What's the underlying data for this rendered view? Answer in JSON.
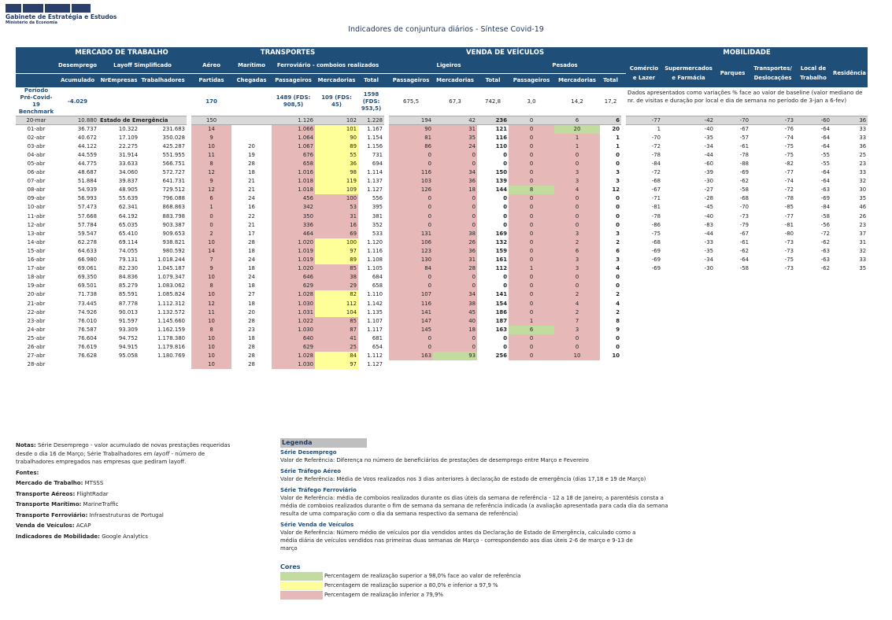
{
  "logo": {
    "name": "Gabinete de Estratégia e Estudos",
    "sub": "Ministério da Economia"
  },
  "title": "Indicadores de conjuntura diários - Síntese Covid-19",
  "headers": {
    "g_mercado": "MERCADO DE TRABALHO",
    "g_transportes": "TRANSPORTES",
    "g_venda": "VENDA DE VEÍCULOS",
    "g_mobilidade": "MOBILIDADE",
    "desemprego": "Desemprego",
    "layoff": "Layoff Simplificado",
    "aereo": "Aéreo",
    "maritimo": "Marítimo",
    "ferroviario": "Ferroviário - comboios realizados",
    "ligeiros": "Ligeiros",
    "pesados": "Pesados",
    "acumulado": "Acumulado",
    "nrempresas": "NrEmpresas",
    "trabalhadores": "Trabalhadores",
    "partidas": "Partidas",
    "chegadas": "Chegadas",
    "passageiros": "Passageiros",
    "mercadorias": "Mercadorias",
    "total": "Total",
    "comercio": "Comércio e Lazer",
    "supermercados": "Supermercados e Farmácia",
    "parques": "Parques",
    "transportes_desloc": "Transportes/ Deslocações",
    "local_trabalho": "Local de Trabalho",
    "residencia": "Residência"
  },
  "benchmark": {
    "label": "Período Pré-Covid-19 Benchmark",
    "desemprego": "-4.029",
    "aereo": "170",
    "fer_pass": "1489 (FDS: 908,5)",
    "fer_merc": "109 (FDS: 45)",
    "fer_total": "1598 (FDS: 953,5)",
    "lig_pass": "675,5",
    "lig_merc": "67,3",
    "lig_total": "742,8",
    "pes_pass": "3,0",
    "pes_merc": "14,2",
    "pes_total": "17,2",
    "mob_note": "Dados apresentados como variações % face ao valor de baseline (valor mediano de nr. de visitas e duração por local e dia de semana no período de 3-jan a 6-fev)"
  },
  "estado": "Estado de Emergência",
  "rows": [
    [
      "20-mar",
      "10.880",
      "",
      "",
      "150",
      "",
      "1.126",
      "102",
      "1.228",
      "194",
      "42",
      "236",
      "0",
      "6",
      "6",
      "-77",
      "-42",
      "-70",
      "-73",
      "-60",
      "36"
    ],
    [
      "01-abr",
      "36.737",
      "10.322",
      "231.683",
      "14",
      "",
      "1.066",
      "101",
      "1.167",
      "90",
      "31",
      "121",
      "0",
      "20",
      "20",
      "1",
      "-40",
      "-67",
      "-76",
      "-64",
      "33"
    ],
    [
      "02-abr",
      "40.672",
      "17.109",
      "350.028",
      "9",
      "",
      "1.064",
      "90",
      "1.154",
      "81",
      "35",
      "116",
      "0",
      "1",
      "1",
      "-70",
      "-35",
      "-57",
      "-74",
      "-64",
      "33"
    ],
    [
      "03-abr",
      "44.122",
      "22.275",
      "425.287",
      "10",
      "20",
      "1.067",
      "89",
      "1.156",
      "86",
      "24",
      "110",
      "0",
      "1",
      "1",
      "-72",
      "-34",
      "-61",
      "-75",
      "-64",
      "36"
    ],
    [
      "04-abr",
      "44.559",
      "31.914",
      "551.955",
      "11",
      "19",
      "676",
      "55",
      "731",
      "0",
      "0",
      "0",
      "0",
      "0",
      "0",
      "-78",
      "-44",
      "-78",
      "-75",
      "-55",
      "25"
    ],
    [
      "05-abr",
      "44.775",
      "33.633",
      "566.751",
      "8",
      "28",
      "658",
      "36",
      "694",
      "0",
      "0",
      "0",
      "0",
      "0",
      "0",
      "-84",
      "-60",
      "-88",
      "-82",
      "-55",
      "23"
    ],
    [
      "06-abr",
      "48.687",
      "34.060",
      "572.727",
      "12",
      "18",
      "1.016",
      "98",
      "1.114",
      "116",
      "34",
      "150",
      "0",
      "3",
      "3",
      "-72",
      "-39",
      "-69",
      "-77",
      "-64",
      "33"
    ],
    [
      "07-abr",
      "51.884",
      "39.837",
      "641.731",
      "9",
      "21",
      "1.018",
      "119",
      "1.137",
      "103",
      "36",
      "139",
      "0",
      "3",
      "3",
      "-68",
      "-30",
      "-62",
      "-74",
      "-64",
      "32"
    ],
    [
      "08-abr",
      "54.939",
      "48.905",
      "729.512",
      "12",
      "21",
      "1.018",
      "109",
      "1.127",
      "126",
      "18",
      "144",
      "8",
      "4",
      "12",
      "-67",
      "-27",
      "-58",
      "-72",
      "-63",
      "30"
    ],
    [
      "09-abr",
      "56.993",
      "55.639",
      "796.088",
      "6",
      "24",
      "456",
      "100",
      "556",
      "0",
      "0",
      "0",
      "0",
      "0",
      "0",
      "-71",
      "-28",
      "-68",
      "-78",
      "-69",
      "35"
    ],
    [
      "10-abr",
      "57.473",
      "62.341",
      "868.863",
      "1",
      "16",
      "342",
      "53",
      "395",
      "0",
      "0",
      "0",
      "0",
      "0",
      "0",
      "-81",
      "-45",
      "-70",
      "-85",
      "-84",
      "46"
    ],
    [
      "11-abr",
      "57.668",
      "64.192",
      "883.798",
      "0",
      "22",
      "350",
      "31",
      "381",
      "0",
      "0",
      "0",
      "0",
      "0",
      "0",
      "-78",
      "-40",
      "-73",
      "-77",
      "-58",
      "26"
    ],
    [
      "12-abr",
      "57.784",
      "65.035",
      "903.387",
      "0",
      "21",
      "336",
      "16",
      "352",
      "0",
      "0",
      "0",
      "0",
      "0",
      "0",
      "-86",
      "-83",
      "-79",
      "-81",
      "-56",
      "23"
    ],
    [
      "13-abr",
      "59.547",
      "65.410",
      "909.653",
      "2",
      "17",
      "464",
      "69",
      "533",
      "131",
      "38",
      "169",
      "0",
      "3",
      "3",
      "-75",
      "-44",
      "-67",
      "-80",
      "-72",
      "37"
    ],
    [
      "14-abr",
      "62.278",
      "69.114",
      "938.821",
      "10",
      "28",
      "1.020",
      "100",
      "1.120",
      "106",
      "26",
      "132",
      "0",
      "2",
      "2",
      "-68",
      "-33",
      "-61",
      "-73",
      "-62",
      "31"
    ],
    [
      "15-abr",
      "64.633",
      "74.055",
      "980.592",
      "14",
      "18",
      "1.019",
      "97",
      "1.116",
      "123",
      "36",
      "159",
      "0",
      "6",
      "6",
      "-69",
      "-35",
      "-62",
      "-73",
      "-63",
      "32"
    ],
    [
      "16-abr",
      "66.980",
      "79.131",
      "1.018.244",
      "7",
      "24",
      "1.019",
      "89",
      "1.108",
      "130",
      "31",
      "161",
      "0",
      "3",
      "3",
      "-69",
      "-34",
      "-64",
      "-75",
      "-63",
      "33"
    ],
    [
      "17-abr",
      "69.061",
      "82.230",
      "1.045.187",
      "9",
      "18",
      "1.020",
      "85",
      "1.105",
      "84",
      "28",
      "112",
      "1",
      "3",
      "4",
      "-69",
      "-30",
      "-58",
      "-73",
      "-62",
      "35"
    ],
    [
      "18-abr",
      "69.350",
      "84.836",
      "1.079.347",
      "10",
      "24",
      "646",
      "38",
      "684",
      "0",
      "0",
      "0",
      "0",
      "0",
      "0",
      "",
      "",
      "",
      "",
      "",
      ""
    ],
    [
      "19-abr",
      "69.501",
      "85.279",
      "1.083.062",
      "8",
      "18",
      "629",
      "29",
      "658",
      "0",
      "0",
      "0",
      "0",
      "0",
      "0",
      "",
      "",
      "",
      "",
      "",
      ""
    ],
    [
      "20-abr",
      "71.738",
      "85.591",
      "1.085.824",
      "10",
      "27",
      "1.028",
      "82",
      "1.110",
      "107",
      "34",
      "141",
      "0",
      "2",
      "2",
      "",
      "",
      "",
      "",
      "",
      ""
    ],
    [
      "21-abr",
      "73.445",
      "87.778",
      "1.112.312",
      "12",
      "18",
      "1.030",
      "112",
      "1.142",
      "116",
      "38",
      "154",
      "0",
      "4",
      "4",
      "",
      "",
      "",
      "",
      "",
      ""
    ],
    [
      "22-abr",
      "74.926",
      "90.013",
      "1.132.572",
      "11",
      "20",
      "1.031",
      "104",
      "1.135",
      "141",
      "45",
      "186",
      "0",
      "2",
      "2",
      "",
      "",
      "",
      "",
      "",
      ""
    ],
    [
      "23-abr",
      "76.010",
      "91.597",
      "1.145.660",
      "10",
      "28",
      "1.022",
      "85",
      "1.107",
      "147",
      "40",
      "187",
      "1",
      "7",
      "8",
      "",
      "",
      "",
      "",
      "",
      ""
    ],
    [
      "24-abr",
      "76.587",
      "93.309",
      "1.162.159",
      "8",
      "23",
      "1.030",
      "87",
      "1.117",
      "145",
      "18",
      "163",
      "6",
      "3",
      "9",
      "",
      "",
      "",
      "",
      "",
      ""
    ],
    [
      "25-abr",
      "76.604",
      "94.752",
      "1.178.380",
      "10",
      "18",
      "640",
      "41",
      "681",
      "0",
      "0",
      "0",
      "0",
      "0",
      "0",
      "",
      "",
      "",
      "",
      "",
      ""
    ],
    [
      "26-abr",
      "76.619",
      "94.915",
      "1.179.816",
      "10",
      "28",
      "629",
      "25",
      "654",
      "0",
      "0",
      "0",
      "0",
      "0",
      "0",
      "",
      "",
      "",
      "",
      "",
      ""
    ],
    [
      "27-abr",
      "76.628",
      "95.058",
      "1.180.769",
      "10",
      "28",
      "1.028",
      "84",
      "1.112",
      "163",
      "93",
      "256",
      "0",
      "10",
      "10",
      "",
      "",
      "",
      "",
      "",
      ""
    ],
    [
      "28-abr",
      "",
      "",
      "",
      "10",
      "28",
      "1.030",
      "97",
      "1.127",
      "",
      "",
      "",
      "",
      "",
      "",
      "",
      "",
      "",
      "",
      "",
      ""
    ]
  ],
  "colors": {
    "red": [
      [
        1,
        4
      ],
      [
        2,
        4
      ],
      [
        3,
        4
      ],
      [
        4,
        4
      ],
      [
        5,
        4
      ],
      [
        6,
        4
      ],
      [
        7,
        4
      ],
      [
        8,
        4
      ],
      [
        9,
        4
      ],
      [
        10,
        4
      ],
      [
        11,
        4
      ],
      [
        12,
        4
      ],
      [
        13,
        4
      ],
      [
        14,
        4
      ],
      [
        15,
        4
      ],
      [
        16,
        4
      ],
      [
        17,
        4
      ],
      [
        18,
        4
      ],
      [
        19,
        4
      ],
      [
        20,
        4
      ],
      [
        21,
        4
      ],
      [
        22,
        4
      ],
      [
        23,
        4
      ],
      [
        24,
        4
      ],
      [
        25,
        4
      ],
      [
        26,
        4
      ],
      [
        27,
        4
      ],
      [
        28,
        4
      ],
      [
        1,
        6
      ],
      [
        2,
        6
      ],
      [
        3,
        6
      ],
      [
        4,
        6
      ],
      [
        5,
        6
      ],
      [
        6,
        6
      ],
      [
        7,
        6
      ],
      [
        8,
        6
      ],
      [
        9,
        6
      ],
      [
        10,
        6
      ],
      [
        11,
        6
      ],
      [
        12,
        6
      ],
      [
        13,
        6
      ],
      [
        14,
        6
      ],
      [
        15,
        6
      ],
      [
        16,
        6
      ],
      [
        17,
        6
      ],
      [
        18,
        6
      ],
      [
        19,
        6
      ],
      [
        20,
        6
      ],
      [
        21,
        6
      ],
      [
        22,
        6
      ],
      [
        23,
        6
      ],
      [
        24,
        6
      ],
      [
        25,
        6
      ],
      [
        26,
        6
      ],
      [
        27,
        6
      ],
      [
        28,
        6
      ],
      [
        9,
        7
      ],
      [
        10,
        7
      ],
      [
        11,
        7
      ],
      [
        12,
        7
      ],
      [
        13,
        7
      ],
      [
        17,
        7
      ],
      [
        18,
        7
      ],
      [
        19,
        7
      ],
      [
        23,
        7
      ],
      [
        24,
        7
      ],
      [
        25,
        7
      ],
      [
        26,
        7
      ],
      [
        1,
        9
      ],
      [
        2,
        9
      ],
      [
        3,
        9
      ],
      [
        4,
        9
      ],
      [
        5,
        9
      ],
      [
        6,
        9
      ],
      [
        7,
        9
      ],
      [
        8,
        9
      ],
      [
        9,
        9
      ],
      [
        10,
        9
      ],
      [
        11,
        9
      ],
      [
        12,
        9
      ],
      [
        13,
        9
      ],
      [
        14,
        9
      ],
      [
        15,
        9
      ],
      [
        16,
        9
      ],
      [
        17,
        9
      ],
      [
        18,
        9
      ],
      [
        19,
        9
      ],
      [
        20,
        9
      ],
      [
        21,
        9
      ],
      [
        22,
        9
      ],
      [
        23,
        9
      ],
      [
        24,
        9
      ],
      [
        25,
        9
      ],
      [
        26,
        9
      ],
      [
        27,
        9
      ],
      [
        1,
        10
      ],
      [
        2,
        10
      ],
      [
        3,
        10
      ],
      [
        4,
        10
      ],
      [
        5,
        10
      ],
      [
        6,
        10
      ],
      [
        7,
        10
      ],
      [
        8,
        10
      ],
      [
        9,
        10
      ],
      [
        10,
        10
      ],
      [
        11,
        10
      ],
      [
        12,
        10
      ],
      [
        13,
        10
      ],
      [
        14,
        10
      ],
      [
        15,
        10
      ],
      [
        16,
        10
      ],
      [
        17,
        10
      ],
      [
        18,
        10
      ],
      [
        19,
        10
      ],
      [
        20,
        10
      ],
      [
        21,
        10
      ],
      [
        22,
        10
      ],
      [
        23,
        10
      ],
      [
        24,
        10
      ],
      [
        25,
        10
      ],
      [
        26,
        10
      ],
      [
        1,
        12
      ],
      [
        2,
        12
      ],
      [
        3,
        12
      ],
      [
        4,
        12
      ],
      [
        5,
        12
      ],
      [
        6,
        12
      ],
      [
        7,
        12
      ],
      [
        9,
        12
      ],
      [
        10,
        12
      ],
      [
        11,
        12
      ],
      [
        12,
        12
      ],
      [
        13,
        12
      ],
      [
        14,
        12
      ],
      [
        15,
        12
      ],
      [
        16,
        12
      ],
      [
        17,
        12
      ],
      [
        18,
        12
      ],
      [
        19,
        12
      ],
      [
        20,
        12
      ],
      [
        21,
        12
      ],
      [
        22,
        12
      ],
      [
        23,
        12
      ],
      [
        25,
        12
      ],
      [
        26,
        12
      ],
      [
        27,
        12
      ],
      [
        2,
        13
      ],
      [
        3,
        13
      ],
      [
        4,
        13
      ],
      [
        5,
        13
      ],
      [
        6,
        13
      ],
      [
        7,
        13
      ],
      [
        8,
        13
      ],
      [
        9,
        13
      ],
      [
        10,
        13
      ],
      [
        11,
        13
      ],
      [
        12,
        13
      ],
      [
        13,
        13
      ],
      [
        14,
        13
      ],
      [
        15,
        13
      ],
      [
        16,
        13
      ],
      [
        17,
        13
      ],
      [
        18,
        13
      ],
      [
        19,
        13
      ],
      [
        20,
        13
      ],
      [
        21,
        13
      ],
      [
        22,
        13
      ],
      [
        23,
        13
      ],
      [
        24,
        13
      ],
      [
        25,
        13
      ],
      [
        26,
        13
      ],
      [
        27,
        13
      ]
    ],
    "yel": [
      [
        1,
        7
      ],
      [
        2,
        7
      ],
      [
        3,
        7
      ],
      [
        4,
        7
      ],
      [
        5,
        7
      ],
      [
        6,
        7
      ],
      [
        7,
        7
      ],
      [
        8,
        7
      ],
      [
        14,
        7
      ],
      [
        15,
        7
      ],
      [
        16,
        7
      ],
      [
        20,
        7
      ],
      [
        21,
        7
      ],
      [
        22,
        7
      ],
      [
        27,
        7
      ],
      [
        28,
        7
      ]
    ],
    "grn": [
      [
        8,
        12
      ],
      [
        24,
        12
      ],
      [
        1,
        13
      ],
      [
        27,
        10
      ]
    ]
  },
  "notes": {
    "notas_label": "Notas:",
    "notas_text": "Série Desemprego - valor acumulado de novas prestações requeridas desde o dia 16 de Março; Série Trabalhadores em ",
    "notas_layoff": "layoff",
    "notas_text2": " - número de trabalhadores empregados nas empresas que pediram layoff.",
    "fontes": "Fontes:",
    "src1_k": "Mercado de Trabalho:",
    "src1_v": " MTSSS",
    "src2_k": "Transporte Aéreos:",
    "src2_v": " FlightRadar",
    "src3_k": "Transporte Marítimo:",
    "src3_v": " MarineTraffic",
    "src4_k": "Transporte Ferroviário:",
    "src4_v": " Infraestruturas de Portugal",
    "src5_k": "Venda de Veículos:",
    "src5_v": " ACAP",
    "src6_k": "Indicadores de Mobilidade:",
    "src6_v": " Google Analytics"
  },
  "legend": {
    "title": "Legenda",
    "s1": "Série Desemprego",
    "d1": "Valor de Referência: Diferença no número de beneficiários de prestações de desemprego entre Março e Fevereiro",
    "s2": "Série Tráfego Aéreo",
    "d2": "Valor de Referência: Média de Voos realizados nos 3 dias anteriores à declaração de estado de emergência (dias 17,18 e 19 de Março)",
    "s3": "Série Tráfego Ferroviário",
    "d3": "Valor de Referência: média de comboios realizados durante os dias úteis da semana de referência - 12 a 18 de Janeiro; a parentésis consta a média de comboios realizados durante o fim de semana da semana de referência indicada (a avaliação apresentada para cada dia da semana resulta de uma comparação com o dia da semana respectivo da semana de referência)",
    "s4": "Série Venda de Veículos",
    "d4": "Valor de Referência: Número médio de veículos por dia vendidos antes da Declaração de Estado de Emergência, calculado como a média diária de veículos vendidos nas primeiras duas semanas de Março - correspondendo aos dias úteis 2-6 de março e 9-13 de março",
    "cores": "Cores",
    "c1": "Percentagem de realização superior a 98,0% face ao valor de referência",
    "c2": "Percentagem de realização superior a 80,0% e inferior a 97,9 %",
    "c3": "Percentagem de realização inferior a 79,9%",
    "c1_color": "#c2dca0",
    "c2_color": "#ffff99",
    "c3_color": "#e6b8b8"
  }
}
